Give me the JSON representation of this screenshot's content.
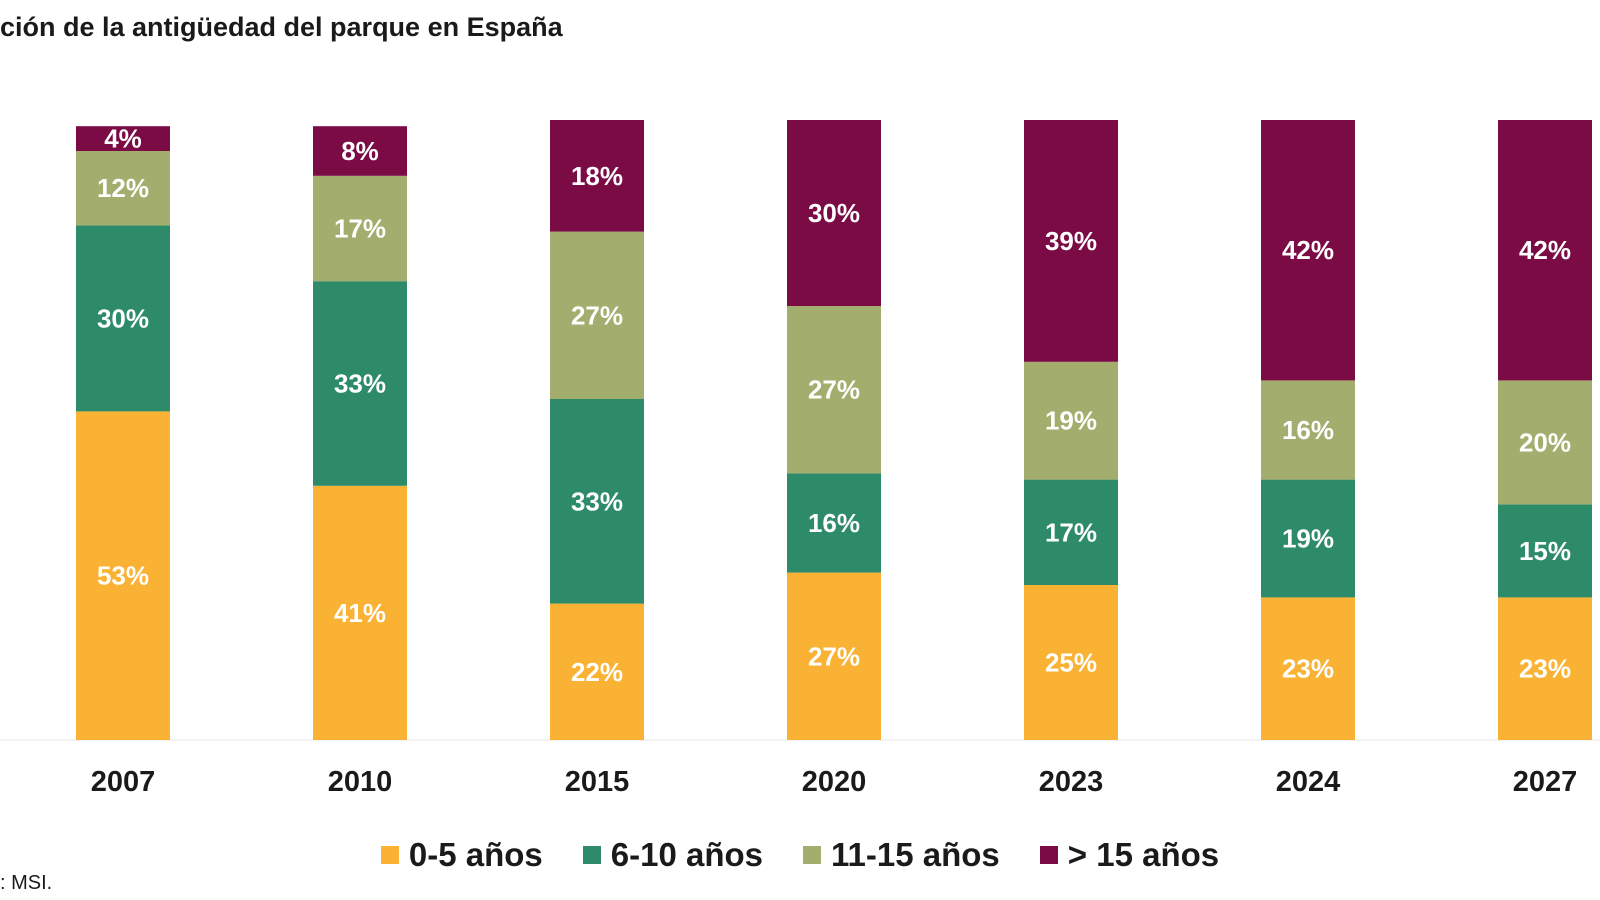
{
  "title": "ción de la antigüedad del parque en España",
  "source": ": MSI.",
  "chart_data": {
    "type": "bar",
    "stacked": true,
    "title": "ción de la antigüedad del parque en España",
    "categories": [
      "2007",
      "2010",
      "2015",
      "2020",
      "2023",
      "2024",
      "2027"
    ],
    "ylim": [
      0,
      100
    ],
    "grid": false,
    "legend_position": "bottom",
    "series": [
      {
        "name": "0-5 años",
        "color": "#F9B233",
        "values": [
          53,
          41,
          22,
          27,
          25,
          23,
          23
        ],
        "labels": [
          "53%",
          "41%",
          "22%",
          "27%",
          "25%",
          "23%",
          "23%"
        ]
      },
      {
        "name": "6-10 años",
        "color": "#2E8B6A",
        "values": [
          30,
          33,
          33,
          16,
          17,
          19,
          15
        ],
        "labels": [
          "30%",
          "33%",
          "33%",
          "16%",
          "17%",
          "19%",
          "15%"
        ]
      },
      {
        "name": "11-15 años",
        "color": "#A3AE6E",
        "values": [
          12,
          17,
          27,
          27,
          19,
          16,
          20
        ],
        "labels": [
          "12%",
          "17%",
          "27%",
          "27%",
          "19%",
          "16%",
          "20%"
        ]
      },
      {
        "name": "> 15 años",
        "color": "#7A0B45",
        "values": [
          4,
          8,
          18,
          30,
          39,
          42,
          42
        ],
        "labels": [
          "4%",
          "8%",
          "18%",
          "30%",
          "39%",
          "42%",
          "42%"
        ]
      }
    ]
  }
}
